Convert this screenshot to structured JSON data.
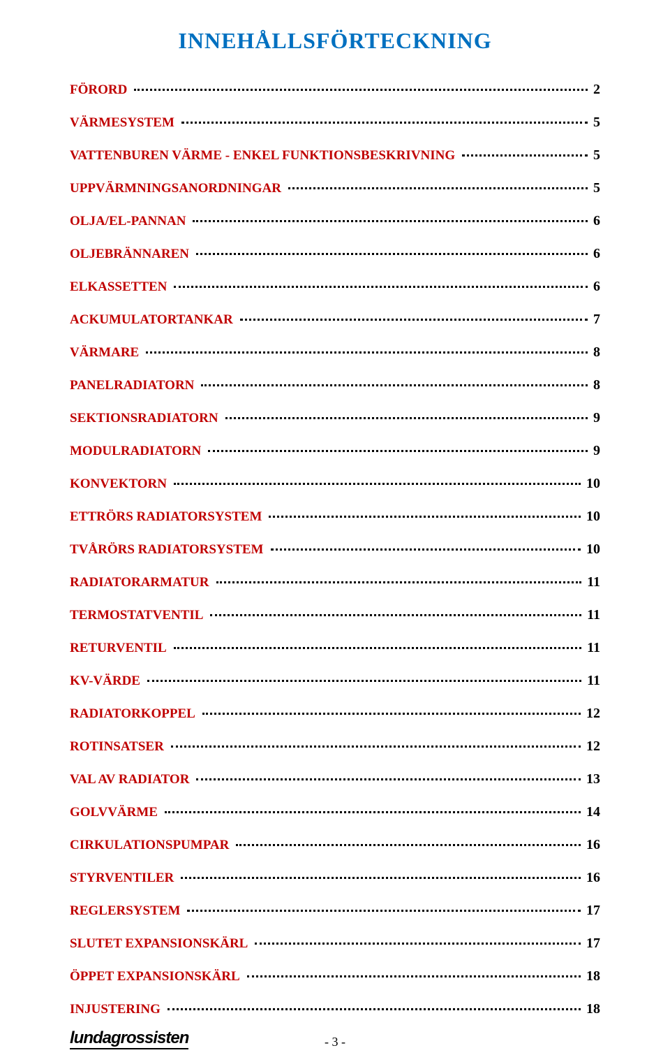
{
  "title": "INNEHÅLLSFÖRTECKNING",
  "colors": {
    "title": "#0070c0",
    "label": "#c00000",
    "page_number_text": "#000000",
    "dots": "#000000",
    "background": "#ffffff"
  },
  "toc": [
    {
      "label": "FÖRORD",
      "page": "2"
    },
    {
      "label": "VÄRMESYSTEM",
      "page": "5"
    },
    {
      "label": "VATTENBUREN VÄRME - ENKEL FUNKTIONSBESKRIVNING",
      "page": "5"
    },
    {
      "label": "UPPVÄRMNINGSANORDNINGAR",
      "page": "5"
    },
    {
      "label": "OLJA/EL-PANNAN",
      "page": "6"
    },
    {
      "label": "OLJEBRÄNNAREN",
      "page": "6"
    },
    {
      "label": "ELKASSETTEN",
      "page": "6"
    },
    {
      "label": "ACKUMULATORTANKAR",
      "page": "7"
    },
    {
      "label": "VÄRMARE",
      "page": "8"
    },
    {
      "label": "PANELRADIATORN",
      "page": "8"
    },
    {
      "label": "SEKTIONSRADIATORN",
      "page": "9"
    },
    {
      "label": "MODULRADIATORN",
      "page": "9"
    },
    {
      "label": "KONVEKTORN",
      "page": "10"
    },
    {
      "label": "ETTRÖRS RADIATORSYSTEM",
      "page": "10"
    },
    {
      "label": "TVÅRÖRS RADIATORSYSTEM",
      "page": "10"
    },
    {
      "label": "RADIATORARMATUR",
      "page": "11"
    },
    {
      "label": "TERMOSTATVENTIL",
      "page": "11"
    },
    {
      "label": "RETURVENTIL",
      "page": "11"
    },
    {
      "label": "KV-VÄRDE",
      "page": "11"
    },
    {
      "label": "RADIATORKOPPEL",
      "page": "12"
    },
    {
      "label": "ROTINSATSER",
      "page": "12"
    },
    {
      "label": "VAL AV RADIATOR",
      "page": "13"
    },
    {
      "label": "GOLVVÄRME",
      "page": "14"
    },
    {
      "label": "CIRKULATIONSPUMPAR",
      "page": "16"
    },
    {
      "label": "STYRVENTILER",
      "page": "16"
    },
    {
      "label": "REGLERSYSTEM",
      "page": "17"
    },
    {
      "label": "SLUTET EXPANSIONSKÄRL",
      "page": "17"
    },
    {
      "label": "ÖPPET EXPANSIONSKÄRL",
      "page": "18"
    },
    {
      "label": "INJUSTERING",
      "page": "18"
    }
  ],
  "footer": {
    "logo_text": "lundagrossisten",
    "page_number_display": "- 3 -"
  }
}
